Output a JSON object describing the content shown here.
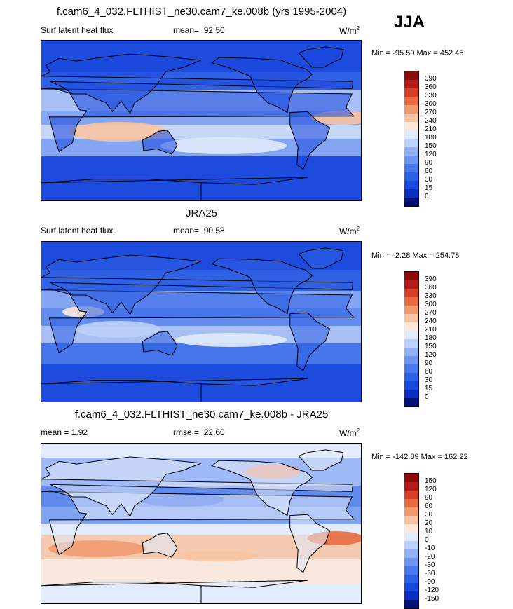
{
  "season": "JJA",
  "unit": "W/m",
  "unit_exp": "2",
  "panels": [
    {
      "title": "f.cam6_4_032.FLTHIST_ne30.cam7_ke.008b (yrs 1995-2004)",
      "left_label": "Surf latent heat flux",
      "stat_label": "mean=",
      "stat_value": "92.50",
      "minmax": "Min = -95.59 Max = 452.45"
    },
    {
      "title": "JRA25",
      "left_label": "Surf latent heat flux",
      "stat_label": "mean=",
      "stat_value": "90.58",
      "minmax": "Min =  -2.28 Max = 254.78"
    },
    {
      "title": "f.cam6_4_032.FLTHIST_ne30.cam7_ke.008b - JRA25",
      "left_label": "mean =   1.92",
      "stat_label": "rmse =",
      "stat_value": "22.60",
      "minmax": "Min = -142.89 Max = 162.22"
    }
  ],
  "chart_data": [
    {
      "type": "heatmap",
      "title": "f.cam6_4_032.FLTHIST_ne30.cam7_ke.008b (yrs 1995-2004)",
      "variable": "Surf latent heat flux",
      "mean": 92.5,
      "min": -95.59,
      "max": 452.45,
      "unit": "W/m^2",
      "colorbar_levels": [
        0,
        15,
        30,
        60,
        90,
        120,
        150,
        180,
        210,
        240,
        270,
        300,
        330,
        360,
        390
      ],
      "colorbar_colors": [
        "#00107a",
        "#0a2ec2",
        "#1a48dc",
        "#2f61e4",
        "#4a79ea",
        "#6d95ef",
        "#93b2f4",
        "#bcd0f8",
        "#e1ebfb",
        "#fbe6d7",
        "#f7c4a3",
        "#f19a70",
        "#e86b43",
        "#d6402a",
        "#b41c17",
        "#8a0a0a"
      ]
    },
    {
      "type": "heatmap",
      "title": "JRA25",
      "variable": "Surf latent heat flux",
      "mean": 90.58,
      "min": -2.28,
      "max": 254.78,
      "unit": "W/m^2",
      "colorbar_levels": [
        0,
        15,
        30,
        60,
        90,
        120,
        150,
        180,
        210,
        240,
        270,
        300,
        330,
        360,
        390
      ],
      "colorbar_colors": [
        "#00107a",
        "#0a2ec2",
        "#1a48dc",
        "#2f61e4",
        "#4a79ea",
        "#6d95ef",
        "#93b2f4",
        "#bcd0f8",
        "#e1ebfb",
        "#fbe6d7",
        "#f7c4a3",
        "#f19a70",
        "#e86b43",
        "#d6402a",
        "#b41c17",
        "#8a0a0a"
      ]
    },
    {
      "type": "heatmap",
      "title": "f.cam6_4_032.FLTHIST_ne30.cam7_ke.008b - JRA25",
      "mean": 1.92,
      "rmse": 22.6,
      "min": -142.89,
      "max": 162.22,
      "unit": "W/m^2",
      "colorbar_levels": [
        -150,
        -120,
        -90,
        -60,
        -30,
        -20,
        -10,
        0,
        10,
        20,
        30,
        60,
        90,
        120,
        150
      ],
      "colorbar_colors": [
        "#00107a",
        "#0a2ec2",
        "#1a48dc",
        "#2f61e4",
        "#4a79ea",
        "#6d95ef",
        "#93b2f4",
        "#bcd0f8",
        "#e1ebfb",
        "#fbe6d7",
        "#f7c4a3",
        "#f19a70",
        "#e86b43",
        "#d6402a",
        "#b41c17",
        "#8a0a0a"
      ]
    }
  ]
}
